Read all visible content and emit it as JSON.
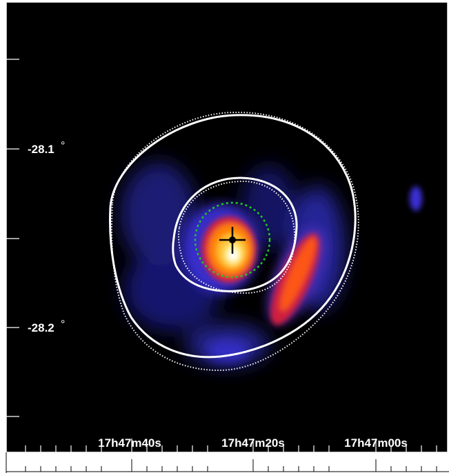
{
  "figure": {
    "ra_ticks": [
      "17h47m40s",
      "17h47m20s",
      "17h47m00s"
    ],
    "dec_ticks": [
      "-28.1",
      "-28.2"
    ],
    "degree_symbol": "°",
    "colors": {
      "background": "#000000",
      "frame": "#ffffff",
      "contours": "#ffffff",
      "source_circle": "#22cc22",
      "source_marker": "#000000"
    },
    "colormap": [
      "#000000",
      "#1b1b7a",
      "#3a2fd4",
      "#8b2fb6",
      "#d8203a",
      "#ff5a10",
      "#ffa000",
      "#ffe060",
      "#ffffff"
    ]
  }
}
